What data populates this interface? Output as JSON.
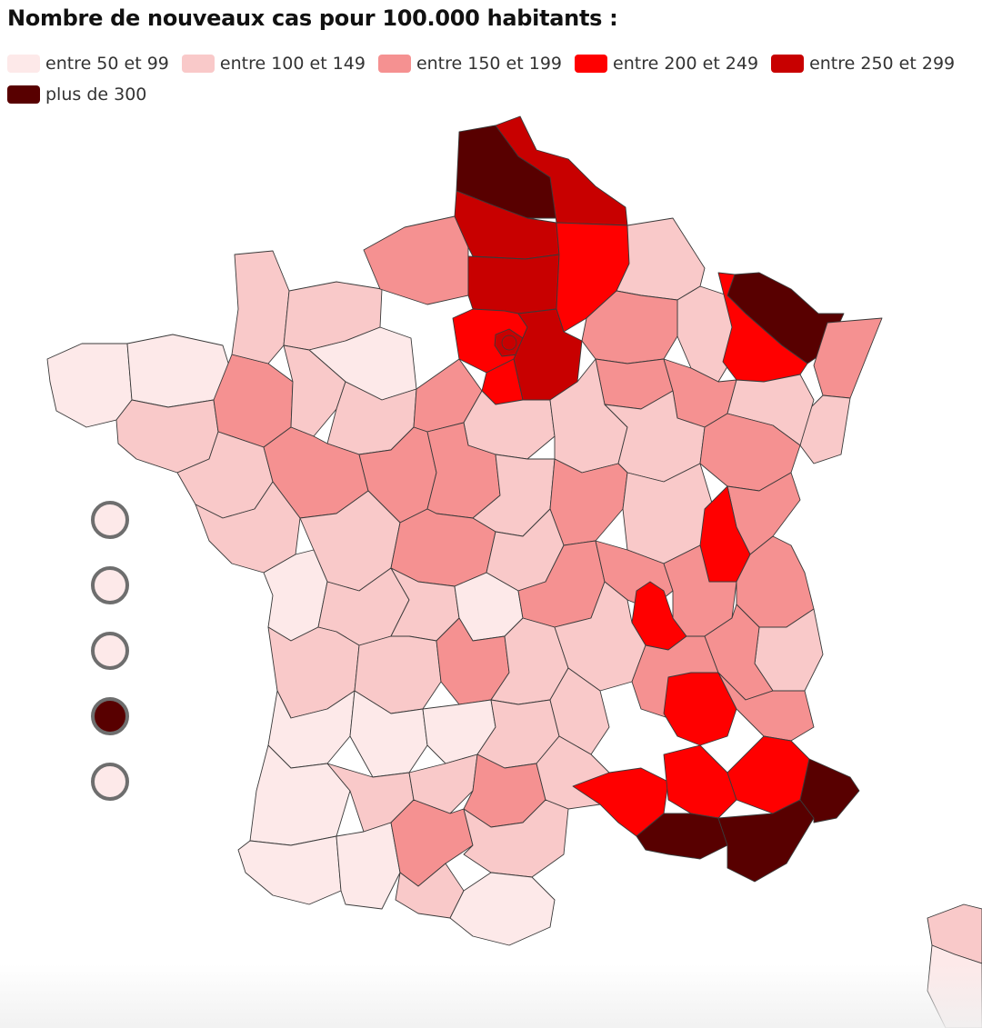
{
  "title": "Nombre de nouveaux cas pour 100.000 habitants :",
  "legend": [
    {
      "label": "entre 50 et 99",
      "color": "#fde9e9"
    },
    {
      "label": "entre 100 et 149",
      "color": "#f9c9c9"
    },
    {
      "label": "entre 150 et 199",
      "color": "#f59191"
    },
    {
      "label": "entre 200 et 249",
      "color": "#ff0000"
    },
    {
      "label": "entre 250 et 299",
      "color": "#c80000"
    },
    {
      "label": "plus de 300",
      "color": "#580000"
    }
  ],
  "overseas_markers": [
    {
      "category": "entre 50 et 99"
    },
    {
      "category": "entre 50 et 99"
    },
    {
      "category": "entre 50 et 99"
    },
    {
      "category": "plus de 300"
    },
    {
      "category": "entre 50 et 99"
    }
  ]
}
